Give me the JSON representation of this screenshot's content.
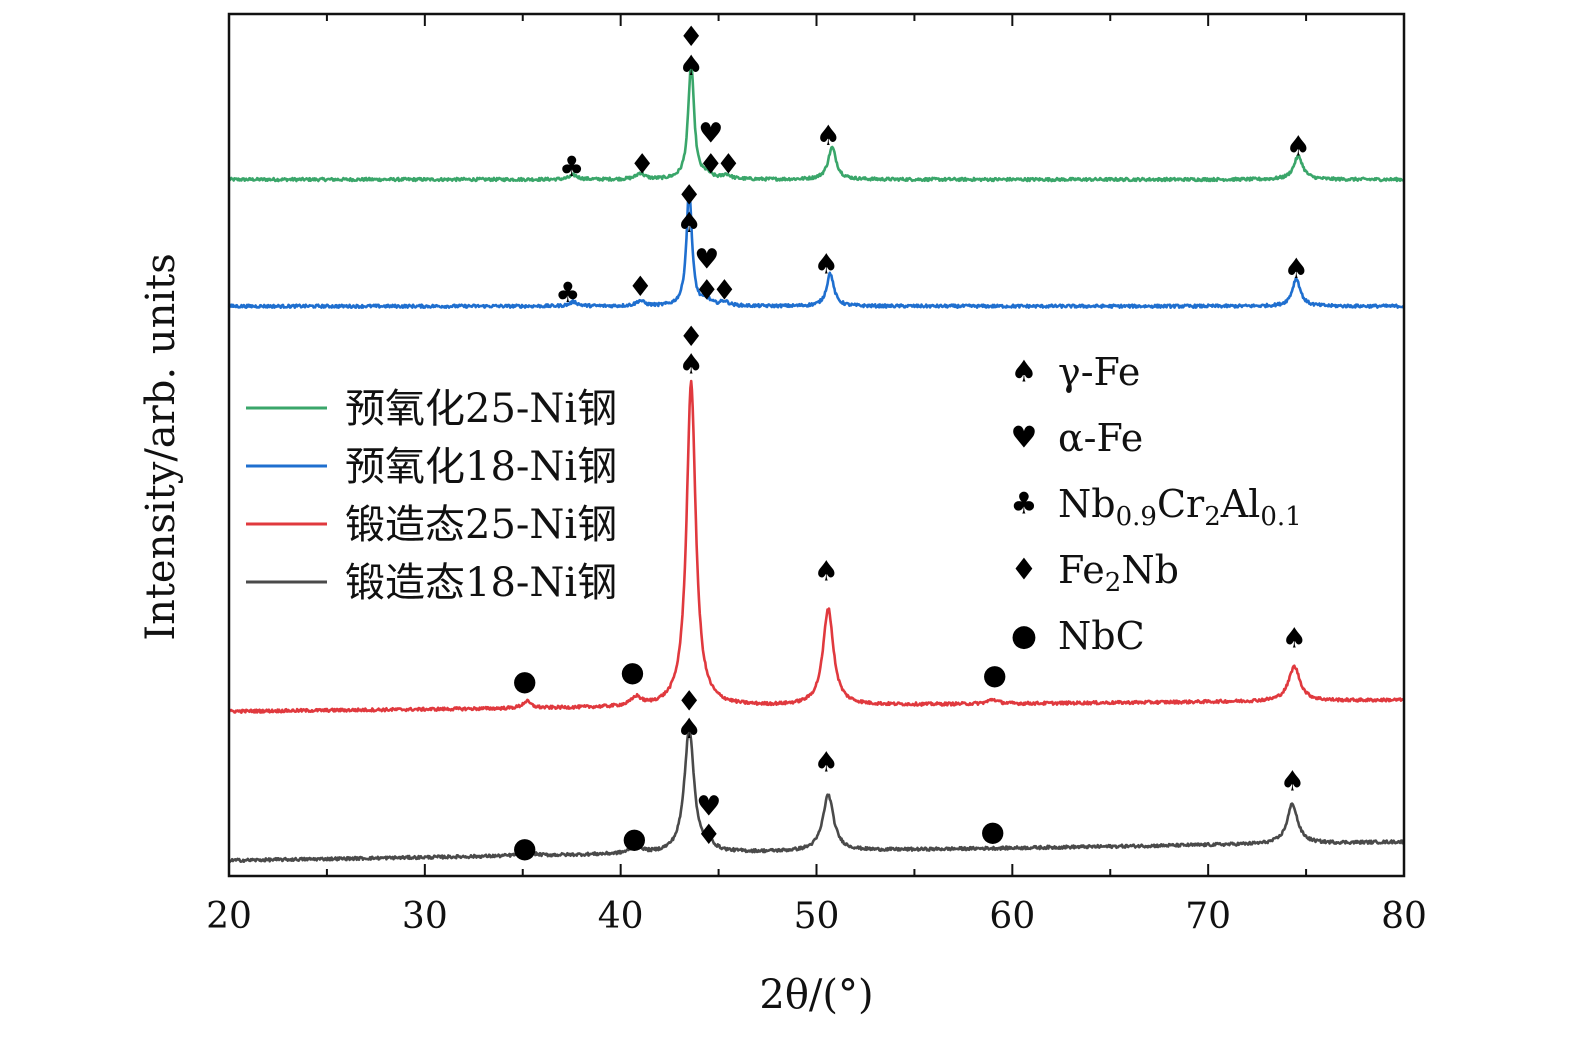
{
  "chart_data": {
    "type": "line",
    "title": "",
    "xlabel": "2θ/(°)",
    "ylabel": "Intensity/arb. units",
    "xlim": [
      20,
      80
    ],
    "ylim": [
      0,
      100
    ],
    "x_ticks": [
      "20",
      "30",
      "40",
      "50",
      "60",
      "70",
      "80"
    ],
    "grid": false,
    "legend_position": "left-middle",
    "series": [
      {
        "name": "预氧化25-Ni钢",
        "color": "#3aa66a",
        "baseline": 80.8,
        "slope": 0,
        "peaks": [
          {
            "x": 37.6,
            "h": 0.5,
            "w": 0.25
          },
          {
            "x": 41.0,
            "h": 0.7,
            "w": 0.25
          },
          {
            "x": 43.6,
            "h": 13.4,
            "w": 0.18
          },
          {
            "x": 44.4,
            "h": 0.5,
            "w": 0.25
          },
          {
            "x": 45.4,
            "h": 0.5,
            "w": 0.25
          },
          {
            "x": 50.8,
            "h": 3.7,
            "w": 0.25
          },
          {
            "x": 74.6,
            "h": 2.7,
            "w": 0.28
          }
        ]
      },
      {
        "name": "预氧化18-Ni钢",
        "color": "#1f6fcf",
        "baseline": 66.1,
        "slope": 0,
        "peaks": [
          {
            "x": 37.6,
            "h": 0.5,
            "w": 0.25
          },
          {
            "x": 41.0,
            "h": 0.6,
            "w": 0.25
          },
          {
            "x": 43.5,
            "h": 13.4,
            "w": 0.17
          },
          {
            "x": 44.4,
            "h": 0.6,
            "w": 0.25
          },
          {
            "x": 45.3,
            "h": 0.5,
            "w": 0.25
          },
          {
            "x": 50.7,
            "h": 3.8,
            "w": 0.22
          },
          {
            "x": 74.5,
            "h": 3.2,
            "w": 0.25
          }
        ]
      },
      {
        "name": "锻造态25-Ni钢",
        "color": "#e0393e",
        "baseline": 19.1,
        "slope": 0.022,
        "peaks": [
          {
            "x": 35.2,
            "h": 0.8,
            "w": 0.25
          },
          {
            "x": 40.8,
            "h": 1.0,
            "w": 0.3
          },
          {
            "x": 43.6,
            "h": 37.6,
            "w": 0.28
          },
          {
            "x": 50.6,
            "h": 11.2,
            "w": 0.32
          },
          {
            "x": 59.0,
            "h": 0.5,
            "w": 0.3
          },
          {
            "x": 74.4,
            "h": 4.0,
            "w": 0.35
          }
        ]
      },
      {
        "name": "锻造态18-Ni钢",
        "color": "#4a4a4a",
        "baseline": 1.8,
        "slope": 0.036,
        "peaks": [
          {
            "x": 35.2,
            "h": 0.8,
            "w": 0.25
          },
          {
            "x": 40.8,
            "h": 1.0,
            "w": 0.3
          },
          {
            "x": 43.5,
            "h": 14.4,
            "w": 0.3
          },
          {
            "x": 44.6,
            "h": 0.6,
            "w": 0.25
          },
          {
            "x": 50.6,
            "h": 6.5,
            "w": 0.33
          },
          {
            "x": 74.3,
            "h": 4.6,
            "w": 0.32
          }
        ]
      }
    ],
    "phase_legend": [
      {
        "symbol": "♠",
        "label": "γ-Fe"
      },
      {
        "symbol": "♥",
        "label": " α-Fe"
      },
      {
        "symbol": "♣",
        "label": "Nb",
        "sub1": "0.9",
        "mid": "Cr",
        "sub2": "2",
        "mid2": "Al",
        "sub3": "0.1"
      },
      {
        "symbol": "♦",
        "label": "Fe",
        "sub1": "2",
        "mid": "Nb"
      },
      {
        "symbol": "●",
        "label": "NbC"
      }
    ],
    "peak_markers": [
      {
        "x": 43.6,
        "y": 97.4,
        "symbol": "♦"
      },
      {
        "x": 43.6,
        "y": 94.0,
        "symbol": "♠"
      },
      {
        "x": 37.5,
        "y": 82.3,
        "symbol": "♣"
      },
      {
        "x": 41.1,
        "y": 82.6,
        "symbol": "♦"
      },
      {
        "x": 44.6,
        "y": 86.2,
        "symbol": "♥"
      },
      {
        "x": 44.6,
        "y": 82.6,
        "symbol": "♦"
      },
      {
        "x": 45.5,
        "y": 82.6,
        "symbol": "♦"
      },
      {
        "x": 50.6,
        "y": 85.9,
        "symbol": "♠"
      },
      {
        "x": 74.6,
        "y": 84.7,
        "symbol": "♠"
      },
      {
        "x": 43.5,
        "y": 79.0,
        "symbol": "♦"
      },
      {
        "x": 43.5,
        "y": 75.8,
        "symbol": "♠"
      },
      {
        "x": 37.3,
        "y": 67.7,
        "symbol": "♣"
      },
      {
        "x": 41.0,
        "y": 68.4,
        "symbol": "♦"
      },
      {
        "x": 44.4,
        "y": 71.6,
        "symbol": "♥"
      },
      {
        "x": 44.4,
        "y": 68.0,
        "symbol": "♦"
      },
      {
        "x": 45.3,
        "y": 68.0,
        "symbol": "♦"
      },
      {
        "x": 50.5,
        "y": 71.0,
        "symbol": "♠"
      },
      {
        "x": 74.5,
        "y": 70.5,
        "symbol": "♠"
      },
      {
        "x": 43.6,
        "y": 62.6,
        "symbol": "♦"
      },
      {
        "x": 43.6,
        "y": 59.4,
        "symbol": "♠"
      },
      {
        "x": 35.1,
        "y": 22.7,
        "symbol": "●"
      },
      {
        "x": 40.6,
        "y": 23.7,
        "symbol": "●"
      },
      {
        "x": 50.5,
        "y": 35.4,
        "symbol": "♠"
      },
      {
        "x": 59.1,
        "y": 23.4,
        "symbol": "●"
      },
      {
        "x": 74.4,
        "y": 27.6,
        "symbol": "♠"
      },
      {
        "x": 43.5,
        "y": 20.3,
        "symbol": "♦"
      },
      {
        "x": 43.5,
        "y": 17.1,
        "symbol": "♠"
      },
      {
        "x": 35.1,
        "y": 3.3,
        "symbol": "●"
      },
      {
        "x": 40.7,
        "y": 4.4,
        "symbol": "●"
      },
      {
        "x": 44.5,
        "y": 8.1,
        "symbol": "♥"
      },
      {
        "x": 44.5,
        "y": 4.8,
        "symbol": "♦"
      },
      {
        "x": 50.5,
        "y": 13.2,
        "symbol": "♠"
      },
      {
        "x": 59.0,
        "y": 5.2,
        "symbol": "●"
      },
      {
        "x": 74.3,
        "y": 11.0,
        "symbol": "♠"
      }
    ]
  }
}
